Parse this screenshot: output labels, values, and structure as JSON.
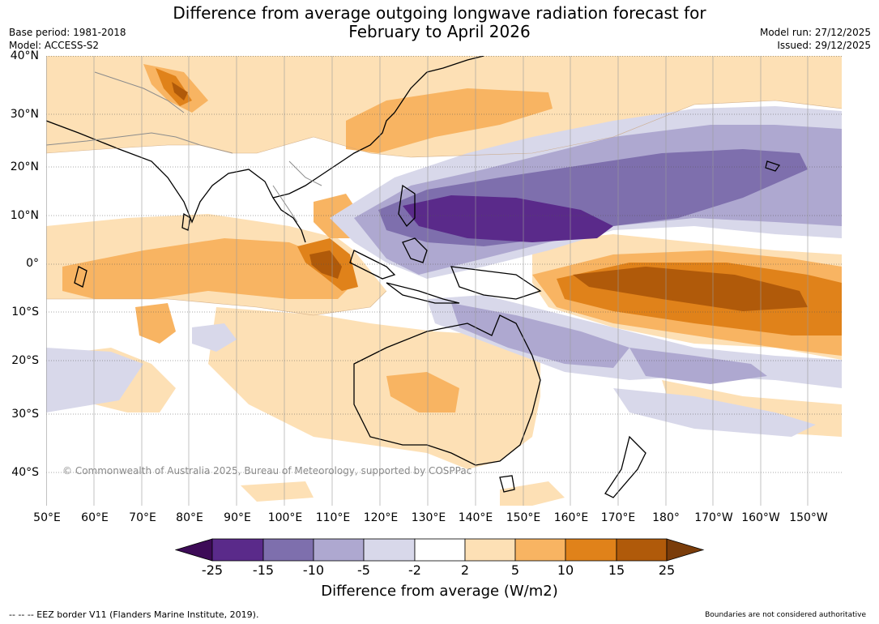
{
  "header": {
    "title_line1": "Difference from average outgoing longwave radiation forecast for",
    "title_line2": "February to April 2026",
    "base_period": "Base period: 1981-2018",
    "model": "Model: ACCESS-S2",
    "model_run": "Model run: 27/12/2025",
    "issued": "Issued: 29/12/2025"
  },
  "map": {
    "lat_labels": [
      "40°N",
      "30°N",
      "20°N",
      "10°N",
      "0°",
      "10°S",
      "20°S",
      "30°S",
      "40°S"
    ],
    "lon_labels": [
      "50°E",
      "60°E",
      "70°E",
      "80°E",
      "90°E",
      "100°E",
      "110°E",
      "120°E",
      "130°E",
      "140°E",
      "150°E",
      "160°E",
      "170°E",
      "180°",
      "170°W",
      "160°W",
      "150°W"
    ],
    "copyright": "© Commonwealth of Australia 2025, Bureau of Meteorology, supported by COSPPac"
  },
  "colorbar": {
    "colors": [
      "#3d0b57",
      "#5a2a8a",
      "#7e6fad",
      "#aea8d0",
      "#d8d8ea",
      "#ffffff",
      "#fde0b5",
      "#f8b462",
      "#e0821a",
      "#b05a0a",
      "#7a3c0a"
    ],
    "labels": [
      "-25",
      "-15",
      "-10",
      "-5",
      "-2",
      "2",
      "5",
      "10",
      "15",
      "25"
    ],
    "title": "Difference from average (W/m2)"
  },
  "footer": {
    "eez": "--  --  -- EEZ border V11 (Flanders Marine Institute, 2019).",
    "disclaimer": "Boundaries are not considered authoritative"
  }
}
